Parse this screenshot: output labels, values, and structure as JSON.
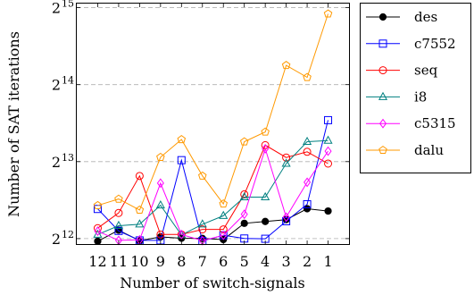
{
  "chart_data": {
    "type": "line",
    "xlabel": "Number of switch-signals",
    "ylabel": "Number of SAT iterations",
    "categories": [
      "12",
      "11",
      "10",
      "9",
      "8",
      "7",
      "6",
      "5",
      "4",
      "3",
      "2",
      "1"
    ],
    "y_scale": "log2",
    "ylim": [
      3900,
      34000
    ],
    "yticks": [
      {
        "value": 4096,
        "base": "2",
        "exp": "12"
      },
      {
        "value": 8192,
        "base": "2",
        "exp": "13"
      },
      {
        "value": 16384,
        "base": "2",
        "exp": "14"
      },
      {
        "value": 32768,
        "base": "2",
        "exp": "15"
      }
    ],
    "grid": "horizontal-dashed",
    "legend_position": "outside-right",
    "series": [
      {
        "name": "des",
        "color": "#000000",
        "marker": "filled-circle",
        "values": [
          4000,
          4420,
          4020,
          4160,
          4110,
          4100,
          4060,
          4700,
          4780,
          4860,
          5360,
          5250
        ]
      },
      {
        "name": "c7552",
        "color": "#0000ff",
        "marker": "square",
        "values": [
          5350,
          4390,
          4030,
          4030,
          8300,
          4010,
          4220,
          4100,
          4090,
          4790,
          5580,
          11900
        ]
      },
      {
        "name": "seq",
        "color": "#ff0000",
        "marker": "circle",
        "values": [
          4500,
          5160,
          7200,
          4250,
          4250,
          4450,
          4450,
          6100,
          9500,
          8500,
          8950,
          8050
        ]
      },
      {
        "name": "i8",
        "color": "#008080",
        "marker": "triangle",
        "values": [
          4250,
          4600,
          4660,
          5530,
          4230,
          4660,
          5030,
          5950,
          5950,
          8050,
          9800,
          9900
        ]
      },
      {
        "name": "c5315",
        "color": "#ff00ff",
        "marker": "diamond",
        "values": [
          4380,
          4030,
          4050,
          6750,
          4250,
          4020,
          4220,
          5100,
          9200,
          4970,
          6800,
          9000
        ]
      },
      {
        "name": "dalu",
        "color": "#ff9900",
        "marker": "pentagon",
        "values": [
          5520,
          5850,
          5300,
          8520,
          10000,
          7200,
          5600,
          9800,
          10700,
          19500,
          17500,
          31000
        ]
      }
    ]
  }
}
